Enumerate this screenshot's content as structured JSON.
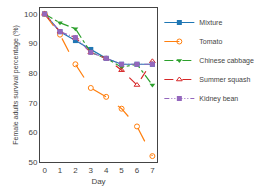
{
  "chart_data": {
    "type": "line",
    "x": [
      0,
      1,
      2,
      3,
      4,
      5,
      6,
      7
    ],
    "series": [
      {
        "name": "Mixture",
        "values": [
          100,
          94,
          91,
          88,
          85,
          83,
          83,
          83
        ],
        "marker": "square",
        "line_style": "solid"
      },
      {
        "name": "Tomato",
        "values": [
          100,
          93,
          83,
          75,
          72,
          68,
          62,
          52
        ],
        "marker": "circle-open",
        "line_style": "longdash"
      },
      {
        "name": "Chinese cabbage",
        "values": [
          100,
          97,
          95,
          87,
          85,
          82,
          83,
          76
        ],
        "marker": "triangle-down",
        "line_style": "dashdot"
      },
      {
        "name": "Summer squash",
        "values": [
          100,
          94,
          92,
          87,
          85,
          81,
          76,
          84
        ],
        "marker": "triangle-up-open",
        "line_style": "dash"
      },
      {
        "name": "Kidney bean",
        "values": [
          100,
          94,
          92,
          87,
          85,
          83,
          83,
          83
        ],
        "marker": "square",
        "line_style": "dashdotdot"
      }
    ],
    "xlabel": "Day",
    "ylabel": "Female adults survival percentage (%)",
    "xlim": [
      -0.3,
      7.3
    ],
    "xticks": [
      0,
      1,
      2,
      3,
      4,
      5,
      6,
      7
    ],
    "ylim": [
      50,
      102
    ],
    "yticks": [
      50,
      60,
      70,
      80,
      90,
      100
    ],
    "grid": false,
    "legend": "upper right"
  }
}
